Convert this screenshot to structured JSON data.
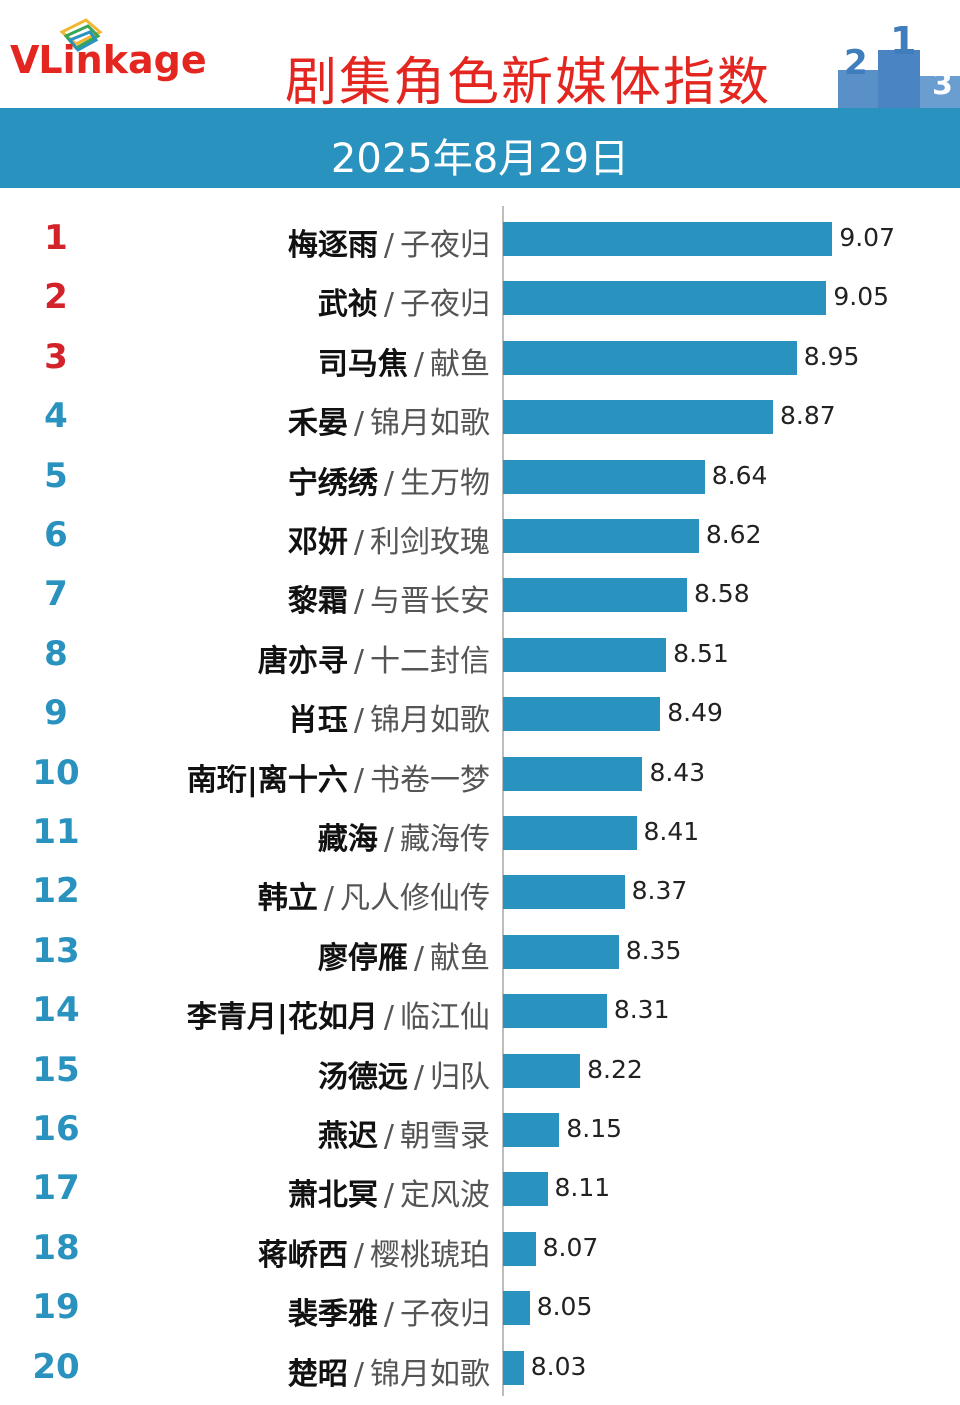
{
  "brand": {
    "v": "V",
    "rest": "Linkage"
  },
  "header": {
    "title": "剧集角色新媒体指数",
    "date": "2025年8月29日"
  },
  "colors": {
    "bar": "#2a92be",
    "top_rank": "#d3232a",
    "rank": "#2a92be",
    "title": "#e3261f"
  },
  "chart_data": {
    "type": "bar",
    "orientation": "horizontal",
    "rows": [
      {
        "rank": "1",
        "name": "梅逐雨",
        "show": "子夜归",
        "value": 9.07,
        "label": "9.07"
      },
      {
        "rank": "2",
        "name": "武祯",
        "show": "子夜归",
        "value": 9.05,
        "label": "9.05"
      },
      {
        "rank": "3",
        "name": "司马焦",
        "show": "献鱼",
        "value": 8.95,
        "label": "8.95"
      },
      {
        "rank": "4",
        "name": "禾晏",
        "show": "锦月如歌",
        "value": 8.87,
        "label": "8.87"
      },
      {
        "rank": "5",
        "name": "宁绣绣",
        "show": "生万物",
        "value": 8.64,
        "label": "8.64"
      },
      {
        "rank": "6",
        "name": "邓妍",
        "show": "利剑玫瑰",
        "value": 8.62,
        "label": "8.62"
      },
      {
        "rank": "7",
        "name": "黎霜",
        "show": "与晋长安",
        "value": 8.58,
        "label": "8.58"
      },
      {
        "rank": "8",
        "name": "唐亦寻",
        "show": "十二封信",
        "value": 8.51,
        "label": "8.51"
      },
      {
        "rank": "9",
        "name": "肖珏",
        "show": "锦月如歌",
        "value": 8.49,
        "label": "8.49"
      },
      {
        "rank": "10",
        "name": "南珩|离十六",
        "show": "书卷一梦",
        "value": 8.43,
        "label": "8.43"
      },
      {
        "rank": "11",
        "name": "藏海",
        "show": "藏海传",
        "value": 8.41,
        "label": "8.41"
      },
      {
        "rank": "12",
        "name": "韩立",
        "show": "凡人修仙传",
        "value": 8.37,
        "label": "8.37"
      },
      {
        "rank": "13",
        "name": "廖停雁",
        "show": "献鱼",
        "value": 8.35,
        "label": "8.35"
      },
      {
        "rank": "14",
        "name": "李青月|花如月",
        "show": "临江仙",
        "value": 8.31,
        "label": "8.31"
      },
      {
        "rank": "15",
        "name": "汤德远",
        "show": "归队",
        "value": 8.22,
        "label": "8.22"
      },
      {
        "rank": "16",
        "name": "燕迟",
        "show": "朝雪录",
        "value": 8.15,
        "label": "8.15"
      },
      {
        "rank": "17",
        "name": "萧北冥",
        "show": "定风波",
        "value": 8.11,
        "label": "8.11"
      },
      {
        "rank": "18",
        "name": "蒋峤西",
        "show": "樱桃琥珀",
        "value": 8.07,
        "label": "8.07"
      },
      {
        "rank": "19",
        "name": "裴季雅",
        "show": "子夜归",
        "value": 8.05,
        "label": "8.05"
      },
      {
        "rank": "20",
        "name": "楚昭",
        "show": "锦月如歌",
        "value": 8.03,
        "label": "8.03"
      }
    ],
    "xlim": [
      7.96,
      9.17
    ]
  }
}
